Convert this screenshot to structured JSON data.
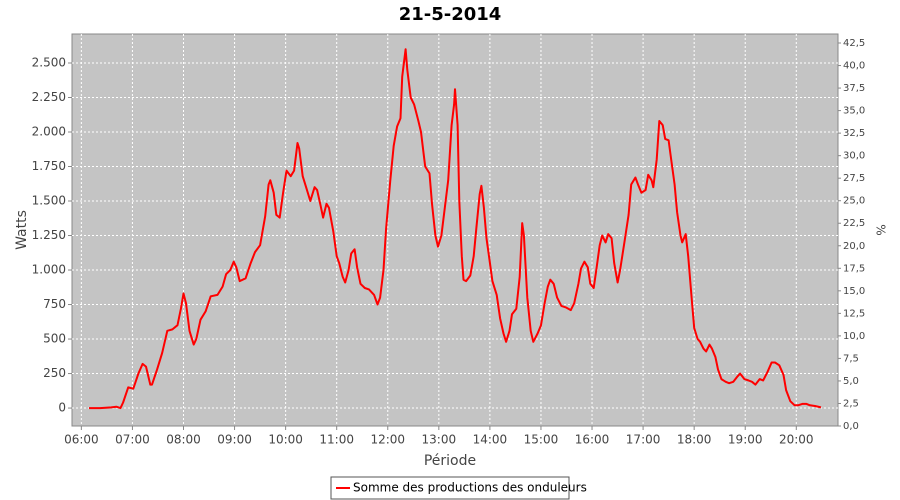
{
  "chart_data": {
    "type": "line",
    "title": "21-5-2014",
    "xlabel": "Période",
    "ylabel": "Watts",
    "y2label": "%",
    "x": [
      "06:09",
      "06:22",
      "06:35",
      "06:41",
      "06:46",
      "06:49",
      "06:55",
      "07:01",
      "07:07",
      "07:12",
      "07:16",
      "07:21",
      "07:23",
      "07:29",
      "07:35",
      "07:41",
      "07:47",
      "07:53",
      "07:57",
      "08:00",
      "08:03",
      "08:07",
      "08:12",
      "08:15",
      "08:20",
      "08:26",
      "08:32",
      "08:40",
      "08:46",
      "08:50",
      "08:55",
      "08:59",
      "09:02",
      "09:06",
      "09:13",
      "09:19",
      "09:24",
      "09:30",
      "09:36",
      "09:40",
      "09:42",
      "09:46",
      "09:49",
      "09:53",
      "09:57",
      "10:01",
      "10:06",
      "10:10",
      "10:14",
      "10:16",
      "10:20",
      "10:24",
      "10:29",
      "10:34",
      "10:37",
      "10:41",
      "10:44",
      "10:48",
      "10:51",
      "10:56",
      "11:00",
      "11:03",
      "11:07",
      "11:10",
      "11:14",
      "11:17",
      "11:21",
      "11:24",
      "11:28",
      "11:33",
      "11:38",
      "11:44",
      "11:48",
      "11:51",
      "11:55",
      "11:58",
      "12:03",
      "12:07",
      "12:11",
      "12:15",
      "12:17",
      "12:21",
      "12:23",
      "12:27",
      "12:31",
      "12:36",
      "12:39",
      "12:42",
      "12:44",
      "12:49",
      "12:52",
      "12:56",
      "12:59",
      "13:03",
      "13:07",
      "13:11",
      "13:15",
      "13:18",
      "13:19",
      "13:22",
      "13:24",
      "13:27",
      "13:29",
      "13:32",
      "13:37",
      "13:41",
      "13:44",
      "13:48",
      "13:50",
      "13:53",
      "13:56",
      "13:59",
      "14:03",
      "14:08",
      "14:12",
      "14:16",
      "14:19",
      "14:23",
      "14:26",
      "14:31",
      "14:35",
      "14:38",
      "14:40",
      "14:44",
      "14:48",
      "14:51",
      "14:56",
      "15:00",
      "15:04",
      "15:08",
      "15:11",
      "15:15",
      "15:19",
      "15:24",
      "15:29",
      "15:35",
      "15:39",
      "15:44",
      "15:47",
      "15:51",
      "15:55",
      "15:58",
      "16:02",
      "16:05",
      "16:09",
      "16:12",
      "16:16",
      "16:19",
      "16:23",
      "16:26",
      "16:30",
      "16:33",
      "16:38",
      "16:43",
      "16:46",
      "16:51",
      "16:54",
      "16:58",
      "17:03",
      "17:06",
      "17:10",
      "17:12",
      "17:16",
      "17:19",
      "17:23",
      "17:26",
      "17:30",
      "17:33",
      "17:37",
      "17:40",
      "17:44",
      "17:46",
      "17:50",
      "17:53",
      "17:57",
      "18:00",
      "18:04",
      "18:07",
      "18:11",
      "18:14",
      "18:18",
      "18:21",
      "18:25",
      "18:28",
      "18:32",
      "18:37",
      "18:41",
      "18:46",
      "18:51",
      "18:54",
      "18:59",
      "19:04",
      "19:08",
      "19:12",
      "19:17",
      "19:21",
      "19:26",
      "19:31",
      "19:35",
      "19:40",
      "19:45",
      "19:48",
      "19:53",
      "19:58",
      "20:02",
      "20:07",
      "20:12",
      "20:16",
      "20:22",
      "20:29"
    ],
    "series": [
      {
        "name": "Somme des productions des onduleurs",
        "color": "#ff0000",
        "values": [
          0,
          0,
          5,
          10,
          0,
          40,
          150,
          140,
          250,
          320,
          300,
          170,
          170,
          280,
          400,
          560,
          570,
          600,
          720,
          830,
          760,
          560,
          460,
          500,
          640,
          700,
          810,
          820,
          880,
          970,
          1000,
          1060,
          1020,
          920,
          940,
          1050,
          1130,
          1180,
          1390,
          1620,
          1650,
          1560,
          1400,
          1380,
          1560,
          1720,
          1680,
          1720,
          1920,
          1880,
          1680,
          1600,
          1500,
          1600,
          1580,
          1470,
          1380,
          1480,
          1450,
          1280,
          1100,
          1050,
          950,
          910,
          1000,
          1120,
          1150,
          1020,
          900,
          870,
          860,
          820,
          750,
          800,
          1000,
          1300,
          1650,
          1900,
          2040,
          2100,
          2400,
          2600,
          2450,
          2250,
          2200,
          2080,
          2000,
          1850,
          1750,
          1700,
          1480,
          1250,
          1170,
          1250,
          1450,
          1650,
          2050,
          2200,
          2310,
          2050,
          1500,
          1100,
          930,
          920,
          960,
          1100,
          1300,
          1550,
          1610,
          1450,
          1230,
          1100,
          920,
          820,
          650,
          540,
          480,
          560,
          680,
          720,
          950,
          1340,
          1250,
          800,
          560,
          480,
          540,
          600,
          750,
          880,
          930,
          900,
          800,
          740,
          730,
          710,
          760,
          900,
          1010,
          1060,
          1020,
          900,
          870,
          1000,
          1180,
          1250,
          1200,
          1260,
          1230,
          1050,
          910,
          1000,
          1200,
          1400,
          1620,
          1670,
          1620,
          1560,
          1580,
          1690,
          1650,
          1600,
          1800,
          2080,
          2050,
          1950,
          1940,
          1800,
          1620,
          1420,
          1250,
          1200,
          1260,
          1100,
          800,
          580,
          500,
          480,
          430,
          410,
          460,
          430,
          370,
          280,
          210,
          190,
          180,
          190,
          230,
          250,
          210,
          200,
          190,
          170,
          210,
          200,
          260,
          330,
          330,
          310,
          240,
          130,
          50,
          20,
          20,
          30,
          30,
          20,
          15,
          5
        ]
      }
    ],
    "xlim": [
      "05:49",
      "20:49"
    ],
    "xticks": [
      "06:00",
      "07:00",
      "08:00",
      "09:00",
      "10:00",
      "11:00",
      "12:00",
      "13:00",
      "14:00",
      "15:00",
      "16:00",
      "17:00",
      "18:00",
      "19:00",
      "20:00"
    ],
    "ylim": [
      -130,
      2710
    ],
    "yticks": [
      0,
      250,
      500,
      750,
      {
        "value": 1000,
        "label": "1.000"
      },
      {
        "value": 1250,
        "label": "1.250"
      },
      {
        "value": 1500,
        "label": "1.500"
      },
      {
        "value": 1750,
        "label": "1.750"
      },
      {
        "value": 2000,
        "label": "2.000"
      },
      {
        "value": 2250,
        "label": "2.250"
      },
      {
        "value": 2500,
        "label": "2.500"
      }
    ],
    "y2lim": [
      0,
      43.5
    ],
    "y2ticks": [
      {
        "value": 0,
        "label": "0,0"
      },
      {
        "value": 2.5,
        "label": "2,5"
      },
      {
        "value": 5,
        "label": "5,0"
      },
      {
        "value": 7.5,
        "label": "7,5"
      },
      {
        "value": 10,
        "label": "10,0"
      },
      {
        "value": 12.5,
        "label": "12,5"
      },
      {
        "value": 15,
        "label": "15,0"
      },
      {
        "value": 17.5,
        "label": "17,5"
      },
      {
        "value": 20,
        "label": "20,0"
      },
      {
        "value": 22.5,
        "label": "22,5"
      },
      {
        "value": 25,
        "label": "25,0"
      },
      {
        "value": 27.5,
        "label": "27,5"
      },
      {
        "value": 30,
        "label": "30,0"
      },
      {
        "value": 32.5,
        "label": "32,5"
      },
      {
        "value": 35,
        "label": "35,0"
      },
      {
        "value": 37.5,
        "label": "37,5"
      },
      {
        "value": 40,
        "label": "40,0"
      },
      {
        "value": 42.5,
        "label": "42,5"
      }
    ],
    "grid": true,
    "legend": "bottom"
  }
}
